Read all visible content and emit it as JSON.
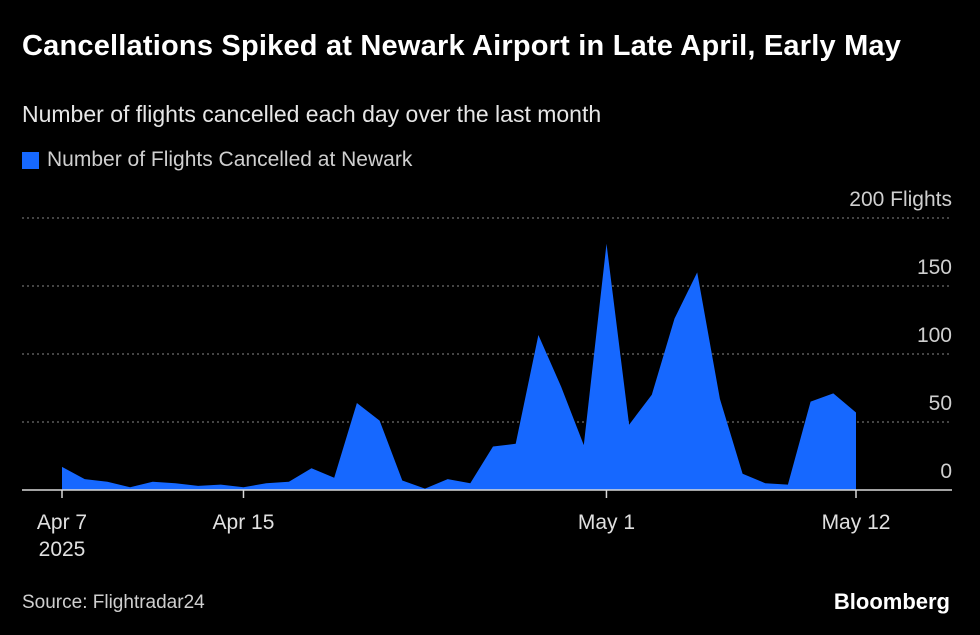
{
  "title": "Cancellations Spiked at Newark Airport in Late April, Early May",
  "subtitle": "Number of flights cancelled each day over the last month",
  "source": "Source: Flightradar24",
  "brand": "Bloomberg",
  "colors": {
    "background": "#000000",
    "area": "#1668ff",
    "grid": "#6e6e6e",
    "axis": "#d9d9d9"
  },
  "chart_data": {
    "type": "area",
    "title": "Cancellations Spiked at Newark Airport in Late April, Early May",
    "subtitle": "Number of flights cancelled each day over the last month",
    "legend_position": "top-left",
    "grid": true,
    "ylim": [
      0,
      200
    ],
    "y_ticks": [
      {
        "value": 200,
        "label": "200 Flights"
      },
      {
        "value": 150,
        "label": "150"
      },
      {
        "value": 100,
        "label": "100"
      },
      {
        "value": 50,
        "label": "50"
      },
      {
        "value": 0,
        "label": "0"
      }
    ],
    "xlim": [
      "2025-04-07",
      "2025-05-15"
    ],
    "x_ticks": [
      {
        "date": "2025-04-07",
        "label": "Apr 7",
        "sublabel": "2025"
      },
      {
        "date": "2025-04-15",
        "label": "Apr 15"
      },
      {
        "date": "2025-05-01",
        "label": "May 1"
      },
      {
        "date": "2025-05-12",
        "label": "May 12"
      }
    ],
    "series": [
      {
        "name": "Number of Flights Cancelled at Newark",
        "points": [
          [
            "2025-04-07",
            17
          ],
          [
            "2025-04-08",
            8
          ],
          [
            "2025-04-09",
            6
          ],
          [
            "2025-04-10",
            2
          ],
          [
            "2025-04-11",
            6
          ],
          [
            "2025-04-12",
            5
          ],
          [
            "2025-04-13",
            3
          ],
          [
            "2025-04-14",
            4
          ],
          [
            "2025-04-15",
            2
          ],
          [
            "2025-04-16",
            5
          ],
          [
            "2025-04-17",
            6
          ],
          [
            "2025-04-18",
            16
          ],
          [
            "2025-04-19",
            9
          ],
          [
            "2025-04-20",
            64
          ],
          [
            "2025-04-21",
            51
          ],
          [
            "2025-04-22",
            7
          ],
          [
            "2025-04-23",
            1
          ],
          [
            "2025-04-24",
            8
          ],
          [
            "2025-04-25",
            5
          ],
          [
            "2025-04-26",
            32
          ],
          [
            "2025-04-27",
            34
          ],
          [
            "2025-04-28",
            114
          ],
          [
            "2025-04-29",
            76
          ],
          [
            "2025-04-30",
            33
          ],
          [
            "2025-05-01",
            181
          ],
          [
            "2025-05-02",
            48
          ],
          [
            "2025-05-03",
            70
          ],
          [
            "2025-05-04",
            126
          ],
          [
            "2025-05-05",
            160
          ],
          [
            "2025-05-06",
            67
          ],
          [
            "2025-05-07",
            12
          ],
          [
            "2025-05-08",
            5
          ],
          [
            "2025-05-09",
            4
          ],
          [
            "2025-05-10",
            65
          ],
          [
            "2025-05-11",
            71
          ],
          [
            "2025-05-12",
            57
          ]
        ]
      }
    ]
  }
}
